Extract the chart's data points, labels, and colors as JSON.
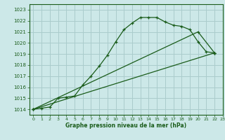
{
  "xlabel": "Graphe pression niveau de la mer (hPa)",
  "bg_color": "#cce8e8",
  "line_color": "#1a5c1a",
  "grid_color": "#aacccc",
  "xlim": [
    -0.5,
    23
  ],
  "ylim": [
    1013.5,
    1023.5
  ],
  "yticks": [
    1014,
    1015,
    1016,
    1017,
    1018,
    1019,
    1020,
    1021,
    1022,
    1023
  ],
  "xticks": [
    0,
    1,
    2,
    3,
    4,
    5,
    6,
    7,
    8,
    9,
    10,
    11,
    12,
    13,
    14,
    15,
    16,
    17,
    18,
    19,
    20,
    21,
    22,
    23
  ],
  "line1_x": [
    0,
    1,
    2,
    3,
    4,
    5,
    6,
    7,
    8,
    9,
    10,
    11,
    12,
    13,
    14,
    15,
    16,
    17,
    18,
    19,
    20,
    21,
    22
  ],
  "line1_y": [
    1014.0,
    1014.1,
    1014.2,
    1015.0,
    1015.1,
    1015.2,
    1016.2,
    1017.0,
    1017.9,
    1018.9,
    1020.1,
    1021.2,
    1021.8,
    1022.3,
    1022.3,
    1022.3,
    1021.9,
    1021.6,
    1021.5,
    1021.2,
    1020.1,
    1019.2,
    1019.1
  ],
  "line2_x": [
    0,
    22
  ],
  "line2_y": [
    1014.0,
    1019.1
  ],
  "line3_x": [
    0,
    20,
    22
  ],
  "line3_y": [
    1014.0,
    1021.0,
    1019.1
  ],
  "xlabel_fontsize": 5.5,
  "tick_fontsize": 5.0,
  "xtick_fontsize": 4.5
}
